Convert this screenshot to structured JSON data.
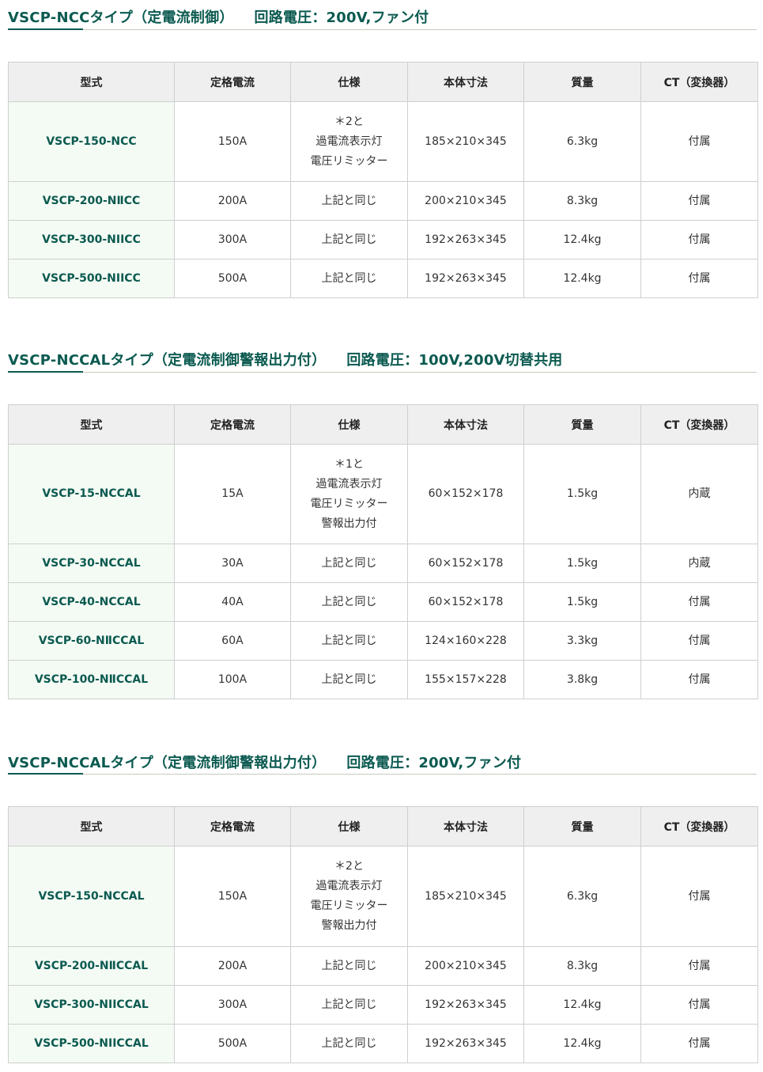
{
  "columns": [
    "型式",
    "定格電流",
    "仕様",
    "本体寸法",
    "質量",
    "CT（変換器）"
  ],
  "sections": [
    {
      "title": "VSCP-NCCタイプ（定電流制御）",
      "voltage": "回路電圧：200V,ファン付",
      "rows": [
        {
          "model": "VSCP-150-NCC",
          "current": "150A",
          "spec": [
            "＊2と",
            "過電流表示灯",
            "電圧リミッター"
          ],
          "size": "185×210×345",
          "mass": "6.3kg",
          "ct": "付属"
        },
        {
          "model": "VSCP-200-NⅡCC",
          "current": "200A",
          "spec": [
            "上記と同じ"
          ],
          "size": "200×210×345",
          "mass": "8.3kg",
          "ct": "付属"
        },
        {
          "model": "VSCP-300-NIICC",
          "current": "300A",
          "spec": [
            "上記と同じ"
          ],
          "size": "192×263×345",
          "mass": "12.4kg",
          "ct": "付属"
        },
        {
          "model": "VSCP-500-NIICC",
          "current": "500A",
          "spec": [
            "上記と同じ"
          ],
          "size": "192×263×345",
          "mass": "12.4kg",
          "ct": "付属"
        }
      ]
    },
    {
      "title": "VSCP-NCCALタイプ（定電流制御警報出力付）",
      "voltage": "回路電圧：100V,200V切替共用",
      "rows": [
        {
          "model": "VSCP-15-NCCAL",
          "current": "15A",
          "spec": [
            "＊1と",
            "過電流表示灯",
            "電圧リミッター",
            "警報出力付"
          ],
          "size": "60×152×178",
          "mass": "1.5kg",
          "ct": "内蔵"
        },
        {
          "model": "VSCP-30-NCCAL",
          "current": "30A",
          "spec": [
            "上記と同じ"
          ],
          "size": "60×152×178",
          "mass": "1.5kg",
          "ct": "内蔵"
        },
        {
          "model": "VSCP-40-NCCAL",
          "current": "40A",
          "spec": [
            "上記と同じ"
          ],
          "size": "60×152×178",
          "mass": "1.5kg",
          "ct": "付属"
        },
        {
          "model": "VSCP-60-NⅡCCAL",
          "current": "60A",
          "spec": [
            "上記と同じ"
          ],
          "size": "124×160×228",
          "mass": "3.3kg",
          "ct": "付属"
        },
        {
          "model": "VSCP-100-NⅡCCAL",
          "current": "100A",
          "spec": [
            "上記と同じ"
          ],
          "size": "155×157×228",
          "mass": "3.8kg",
          "ct": "付属"
        }
      ]
    },
    {
      "title": "VSCP-NCCALタイプ（定電流制御警報出力付）",
      "voltage": "回路電圧：200V,ファン付",
      "rows": [
        {
          "model": "VSCP-150-NCCAL",
          "current": "150A",
          "spec": [
            "＊2と",
            "過電流表示灯",
            "電圧リミッター",
            "警報出力付"
          ],
          "size": "185×210×345",
          "mass": "6.3kg",
          "ct": "付属"
        },
        {
          "model": "VSCP-200-NⅡCCAL",
          "current": "200A",
          "spec": [
            "上記と同じ"
          ],
          "size": "200×210×345",
          "mass": "8.3kg",
          "ct": "付属"
        },
        {
          "model": "VSCP-300-NIICCAL",
          "current": "300A",
          "spec": [
            "上記と同じ"
          ],
          "size": "192×263×345",
          "mass": "12.4kg",
          "ct": "付属"
        },
        {
          "model": "VSCP-500-NIICCAL",
          "current": "500A",
          "spec": [
            "上記と同じ"
          ],
          "size": "192×263×345",
          "mass": "12.4kg",
          "ct": "付属"
        }
      ]
    }
  ]
}
